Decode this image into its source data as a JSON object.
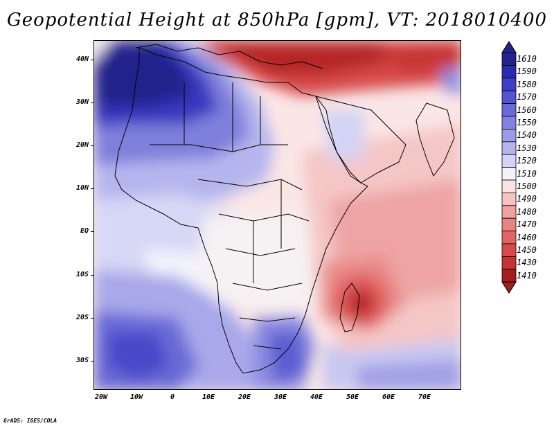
{
  "title": "Geopotential Height at 850hPa [gpm], VT: 2018010400",
  "credit": "GrADS: IGES/COLA",
  "y_axis": [
    "40N",
    "30N",
    "20N",
    "10N",
    "EQ",
    "10S",
    "20S",
    "30S"
  ],
  "x_axis": [
    "20W",
    "10W",
    "0",
    "10E",
    "20E",
    "30E",
    "40E",
    "50E",
    "60E",
    "70E"
  ],
  "colorbar": {
    "levels": [
      "1610",
      "1590",
      "1580",
      "1570",
      "1560",
      "1550",
      "1540",
      "1530",
      "1520",
      "1510",
      "1500",
      "1490",
      "1480",
      "1470",
      "1460",
      "1450",
      "1430",
      "1410"
    ],
    "colors": [
      "#23238b",
      "#2b2bb0",
      "#3e3ec8",
      "#5454cf",
      "#6b6bd7",
      "#8383df",
      "#9c9ce6",
      "#b5b5ee",
      "#d3d3f5",
      "#f3f3fb",
      "#fbe3e3",
      "#f6c3c3",
      "#f0a2a2",
      "#ea8383",
      "#e26565",
      "#d84a4a",
      "#c53333",
      "#a41d1d"
    ]
  },
  "map": {
    "region": "Africa and surrounding ocean",
    "features": [
      "Coastlines",
      "Country borders",
      "Madagascar low center"
    ]
  }
}
